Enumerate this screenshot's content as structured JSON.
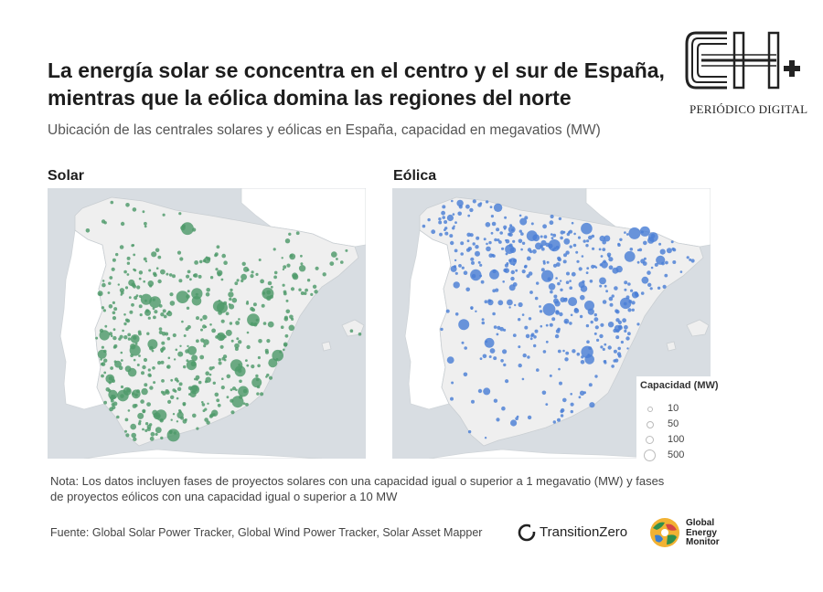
{
  "header": {
    "title_line1": "La energía solar se concentra en el centro y el sur de España,",
    "title_line2": "mientras que la eólica domina las regiones del norte",
    "subtitle": "Ubicación de las centrales solares y eólicas en España, capacidad en megavatios (MW)"
  },
  "brand": {
    "logo_letters": "EH+",
    "logo_tagline": "PERIÓDICO DIGITAL"
  },
  "maps": {
    "solar": {
      "label": "Solar",
      "dot_color": "#4e9a6a"
    },
    "wind": {
      "label": "Eólica",
      "dot_color": "#4a7fd6"
    },
    "land_color": "#efefef",
    "sea_color": "#d8dde2",
    "other_land_color": "#ffffff"
  },
  "legend": {
    "title": "Capacidad (MW)",
    "items": [
      "10",
      "50",
      "100",
      "500"
    ]
  },
  "note": {
    "line1": "Nota: Los datos incluyen fases de proyectos solares con una capacidad igual o superior a 1 megavatio (MW) y fases",
    "line2": "de proyectos eólicos con una capacidad igual o superior a 10 MW"
  },
  "source": "Fuente: Global Solar Power Tracker, Global Wind Power Tracker, Solar Asset Mapper",
  "partners": {
    "transitionzero": "TransitionZero",
    "gem_line1": "Global",
    "gem_line2": "Energy",
    "gem_line3": "Monitor"
  }
}
